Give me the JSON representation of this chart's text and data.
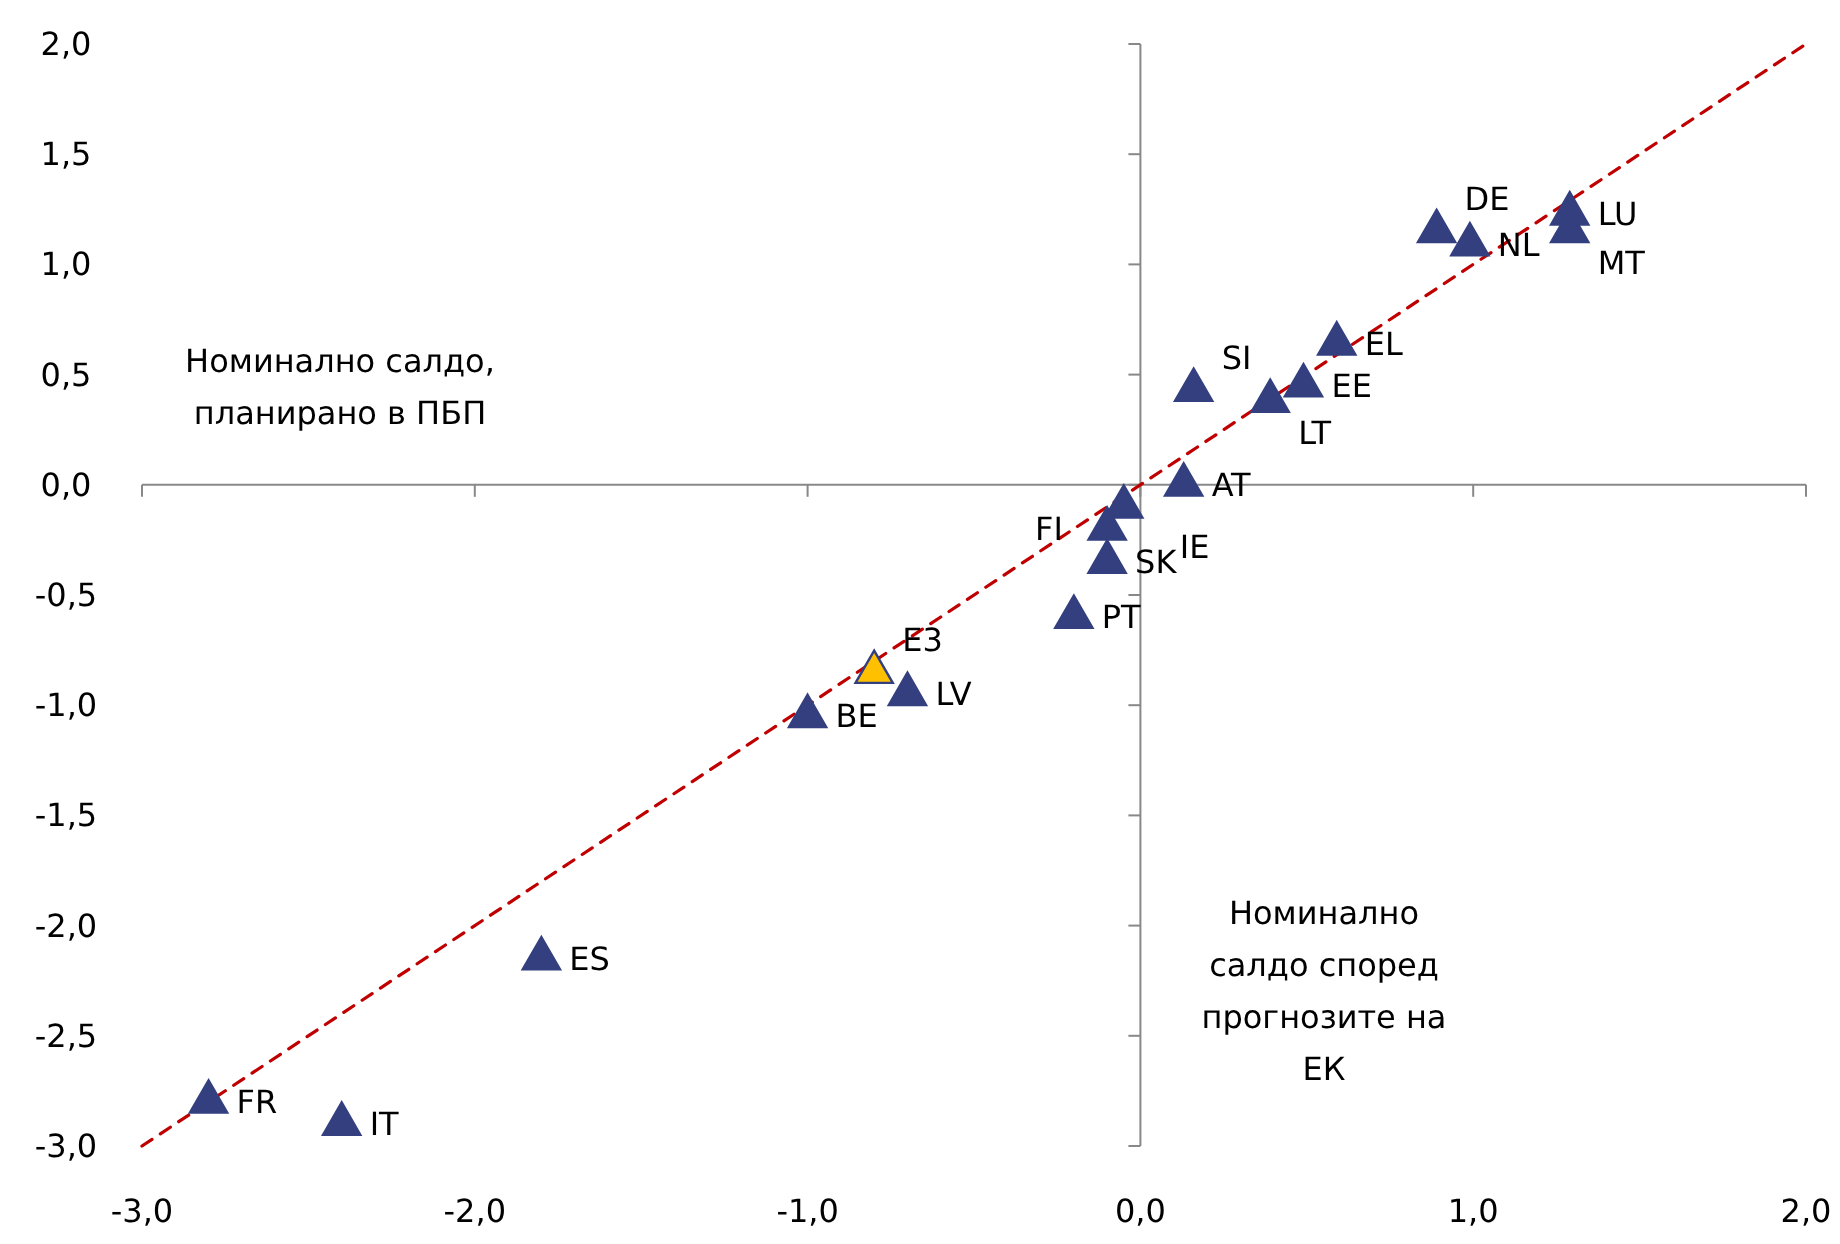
{
  "chart_data": {
    "type": "scatter",
    "xlabel": "Номинално салдо според прогнозите на ЕК",
    "ylabel": "Номинално салдо, планирано в ПБП",
    "xlim": [
      -3,
      2
    ],
    "ylim": [
      -3,
      2
    ],
    "xticks": [
      {
        "value": -3,
        "label": "-3,0"
      },
      {
        "value": -2,
        "label": "-2,0"
      },
      {
        "value": -1,
        "label": "-1,0"
      },
      {
        "value": 0,
        "label": "0,0"
      },
      {
        "value": 1,
        "label": "1,0"
      },
      {
        "value": 2,
        "label": "2,0"
      }
    ],
    "yticks": [
      {
        "value": -3,
        "label": "-3,0"
      },
      {
        "value": -2.5,
        "label": "-2,5"
      },
      {
        "value": -2,
        "label": "-2,0"
      },
      {
        "value": -1.5,
        "label": "-1,5"
      },
      {
        "value": -1,
        "label": "-1,0"
      },
      {
        "value": -0.5,
        "label": "-0,5"
      },
      {
        "value": 0,
        "label": "0,0"
      },
      {
        "value": 0.5,
        "label": "0,5"
      },
      {
        "value": 1,
        "label": "1,0"
      },
      {
        "value": 1.5,
        "label": "1,5"
      },
      {
        "value": 2,
        "label": "2,0"
      }
    ],
    "marker": "triangle",
    "series": [
      {
        "type": "line",
        "color": "#c00000",
        "line_style": "dashed",
        "marker": "none",
        "x": [
          -3,
          2
        ],
        "values": [
          -3,
          2
        ]
      },
      {
        "x": [
          -2.8,
          -2.4,
          -1.8,
          -1.0,
          -0.8,
          -0.7,
          -0.2,
          -0.1,
          -0.1,
          -0.05,
          0.13,
          0.16,
          0.39,
          0.49,
          0.59,
          0.89,
          0.99,
          1.29,
          1.29
        ],
        "values": [
          -2.8,
          -2.9,
          -2.15,
          -1.05,
          -0.85,
          -0.95,
          -0.6,
          -0.35,
          -0.2,
          -0.1,
          0.0,
          0.43,
          0.38,
          0.45,
          0.64,
          1.15,
          1.09,
          1.23,
          1.15
        ],
        "colors": [
          "#333f7f",
          "#333f7f",
          "#333f7f",
          "#333f7f",
          "#ffc000",
          "#333f7f",
          "#333f7f",
          "#333f7f",
          "#333f7f",
          "#333f7f",
          "#333f7f",
          "#333f7f",
          "#333f7f",
          "#333f7f",
          "#333f7f",
          "#333f7f",
          "#333f7f",
          "#333f7f",
          "#333f7f"
        ]
      }
    ],
    "annotations": [
      {
        "text": "FR",
        "x": -2.8,
        "y": -2.8
      },
      {
        "text": "IT",
        "x": -2.4,
        "y": -2.9
      },
      {
        "text": "ES",
        "x": -1.8,
        "y": -2.15
      },
      {
        "text": "BE",
        "x": -1.0,
        "y": -1.05
      },
      {
        "text": "E3",
        "x": -0.8,
        "y": -0.85
      },
      {
        "text": "LV",
        "x": -0.7,
        "y": -0.95
      },
      {
        "text": "PT",
        "x": -0.2,
        "y": -0.6
      },
      {
        "text": "SK",
        "x": -0.1,
        "y": -0.35
      },
      {
        "text": "FI",
        "x": -0.1,
        "y": -0.2
      },
      {
        "text": "IE",
        "x": -0.05,
        "y": -0.1
      },
      {
        "text": "AT",
        "x": 0.13,
        "y": 0.0
      },
      {
        "text": "SI",
        "x": 0.16,
        "y": 0.43
      },
      {
        "text": "LT",
        "x": 0.39,
        "y": 0.38
      },
      {
        "text": "EE",
        "x": 0.49,
        "y": 0.45
      },
      {
        "text": "EL",
        "x": 0.59,
        "y": 0.64
      },
      {
        "text": "DE",
        "x": 0.89,
        "y": 1.15
      },
      {
        "text": "NL",
        "x": 0.99,
        "y": 1.09
      },
      {
        "text": "LU",
        "x": 1.29,
        "y": 1.23
      },
      {
        "text": "MT",
        "x": 1.29,
        "y": 1.15
      }
    ]
  }
}
